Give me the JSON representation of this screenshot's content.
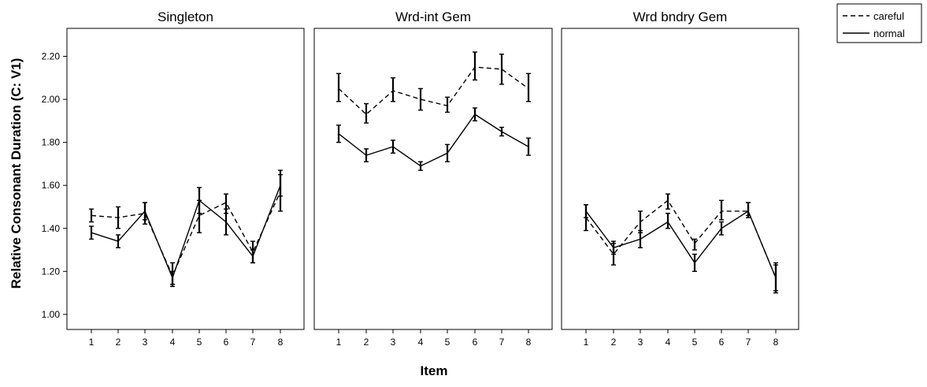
{
  "chart_data": {
    "type": "line",
    "ylabel": "Relative Consonant Duration (C: V1)",
    "xlabel": "Item",
    "ylim": [
      0.93,
      2.33
    ],
    "y_ticks": [
      "1.00",
      "1.20",
      "1.40",
      "1.60",
      "1.80",
      "2.00",
      "2.20"
    ],
    "y_tick_values": [
      1.0,
      1.2,
      1.4,
      1.6,
      1.8,
      2.0,
      2.2
    ],
    "categories": [
      "1",
      "2",
      "3",
      "4",
      "5",
      "6",
      "7",
      "8"
    ],
    "legend": {
      "position": "top-right",
      "entries": [
        {
          "name": "careful",
          "style": "dashed"
        },
        {
          "name": "normal",
          "style": "solid"
        }
      ]
    },
    "panels": [
      {
        "title": "Singleton",
        "series": [
          {
            "name": "careful",
            "style": "dashed",
            "values": [
              1.46,
              1.45,
              1.47,
              1.18,
              1.46,
              1.52,
              1.29,
              1.57
            ],
            "lower": [
              1.43,
              1.4,
              1.42,
              1.13,
              1.38,
              1.47,
              1.24,
              1.48
            ],
            "upper": [
              1.49,
              1.5,
              1.52,
              1.24,
              1.53,
              1.56,
              1.34,
              1.67
            ]
          },
          {
            "name": "normal",
            "style": "solid",
            "values": [
              1.38,
              1.34,
              1.48,
              1.17,
              1.53,
              1.43,
              1.27,
              1.6
            ],
            "lower": [
              1.35,
              1.31,
              1.44,
              1.14,
              1.47,
              1.37,
              1.24,
              1.55
            ],
            "upper": [
              1.41,
              1.37,
              1.52,
              1.2,
              1.59,
              1.49,
              1.3,
              1.65
            ]
          }
        ]
      },
      {
        "title": "Wrd-int Gem",
        "series": [
          {
            "name": "careful",
            "style": "dashed",
            "values": [
              2.05,
              1.93,
              2.04,
              2.0,
              1.97,
              2.15,
              2.14,
              2.05
            ],
            "lower": [
              1.99,
              1.89,
              1.99,
              1.95,
              1.94,
              2.09,
              2.07,
              1.99
            ],
            "upper": [
              2.12,
              1.98,
              2.1,
              2.05,
              2.01,
              2.22,
              2.21,
              2.12
            ]
          },
          {
            "name": "normal",
            "style": "solid",
            "values": [
              1.84,
              1.74,
              1.78,
              1.69,
              1.75,
              1.93,
              1.85,
              1.78
            ],
            "lower": [
              1.8,
              1.71,
              1.75,
              1.67,
              1.71,
              1.9,
              1.83,
              1.74
            ],
            "upper": [
              1.88,
              1.77,
              1.81,
              1.71,
              1.79,
              1.96,
              1.87,
              1.82
            ]
          }
        ]
      },
      {
        "title": "Wrd bndry Gem",
        "series": [
          {
            "name": "careful",
            "style": "dashed",
            "values": [
              1.45,
              1.28,
              1.43,
              1.53,
              1.33,
              1.48,
              1.48,
              1.17
            ],
            "lower": [
              1.39,
              1.23,
              1.38,
              1.49,
              1.3,
              1.44,
              1.45,
              1.1
            ],
            "upper": [
              1.51,
              1.33,
              1.48,
              1.56,
              1.35,
              1.53,
              1.52,
              1.24
            ]
          },
          {
            "name": "normal",
            "style": "solid",
            "values": [
              1.48,
              1.31,
              1.35,
              1.43,
              1.24,
              1.4,
              1.48,
              1.17
            ],
            "lower": [
              1.45,
              1.28,
              1.31,
              1.4,
              1.2,
              1.37,
              1.46,
              1.11
            ],
            "upper": [
              1.51,
              1.34,
              1.39,
              1.47,
              1.28,
              1.43,
              1.52,
              1.23
            ]
          }
        ]
      }
    ]
  }
}
